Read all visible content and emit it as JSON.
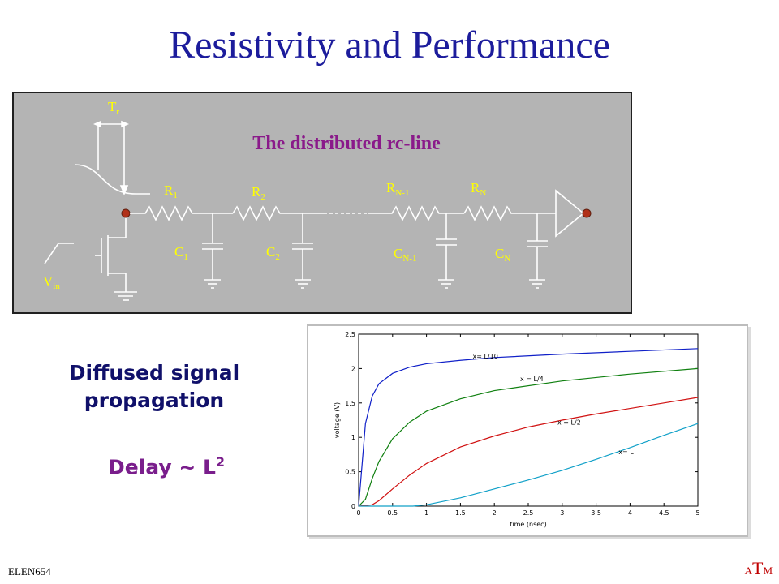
{
  "slide": {
    "title": "Resistivity and Performance",
    "footer": "ELEN654",
    "logo": {
      "a": "A",
      "t": "T",
      "m": "M"
    }
  },
  "diagram": {
    "heading": "The distributed rc-line",
    "tr_label": {
      "main": "T",
      "sub": "r"
    },
    "vin_label": {
      "main": "V",
      "sub": "in"
    },
    "resistors": [
      {
        "main": "R",
        "sub": "1"
      },
      {
        "main": "R",
        "sub": "2"
      },
      {
        "main": "R",
        "sub": "N-1"
      },
      {
        "main": "R",
        "sub": "N"
      }
    ],
    "capacitors": [
      {
        "main": "C",
        "sub": "1"
      },
      {
        "main": "C",
        "sub": "2"
      },
      {
        "main": "C",
        "sub": "N-1"
      },
      {
        "main": "C",
        "sub": "N"
      }
    ]
  },
  "text": {
    "diffused_line1": "Diffused signal",
    "diffused_line2": "propagation",
    "delay_main": "Delay ~ L",
    "delay_sup": "2"
  },
  "chart_data": {
    "type": "line",
    "xlabel": "time (nsec)",
    "ylabel": "voltage (V)",
    "xlim": [
      0,
      5
    ],
    "ylim": [
      0,
      2.5
    ],
    "xticks": [
      "0",
      "0.5",
      "1",
      "1.5",
      "2",
      "2.5",
      "3",
      "3.5",
      "4",
      "4.5",
      "5"
    ],
    "yticks": [
      "0",
      "0.5",
      "1",
      "1.5",
      "2",
      "2.5"
    ],
    "series": [
      {
        "name": "x= L/10",
        "color": "#1020c8",
        "x": [
          0,
          0.05,
          0.1,
          0.2,
          0.3,
          0.5,
          0.75,
          1,
          1.5,
          2,
          3,
          4,
          5
        ],
        "y": [
          0,
          0.6,
          1.2,
          1.6,
          1.78,
          1.93,
          2.02,
          2.07,
          2.12,
          2.16,
          2.21,
          2.25,
          2.29
        ]
      },
      {
        "name": "x = L/4",
        "color": "#108010",
        "x": [
          0,
          0.1,
          0.2,
          0.3,
          0.5,
          0.75,
          1,
          1.5,
          2,
          3,
          4,
          5
        ],
        "y": [
          0,
          0.1,
          0.4,
          0.65,
          0.98,
          1.22,
          1.38,
          1.56,
          1.68,
          1.82,
          1.92,
          2.0
        ]
      },
      {
        "name": "x = L/2",
        "color": "#d01010",
        "x": [
          0,
          0.2,
          0.3,
          0.5,
          0.75,
          1,
          1.5,
          2,
          2.5,
          3,
          3.5,
          4,
          4.5,
          5
        ],
        "y": [
          0,
          0.02,
          0.08,
          0.25,
          0.45,
          0.62,
          0.86,
          1.02,
          1.15,
          1.25,
          1.34,
          1.42,
          1.5,
          1.58
        ]
      },
      {
        "name": "x= L",
        "color": "#10a0c8",
        "x": [
          0,
          0.8,
          1,
          1.5,
          2,
          2.5,
          3,
          3.5,
          4,
          4.5,
          5
        ],
        "y": [
          0,
          0.0,
          0.02,
          0.12,
          0.25,
          0.38,
          0.52,
          0.68,
          0.85,
          1.03,
          1.2
        ]
      }
    ]
  }
}
